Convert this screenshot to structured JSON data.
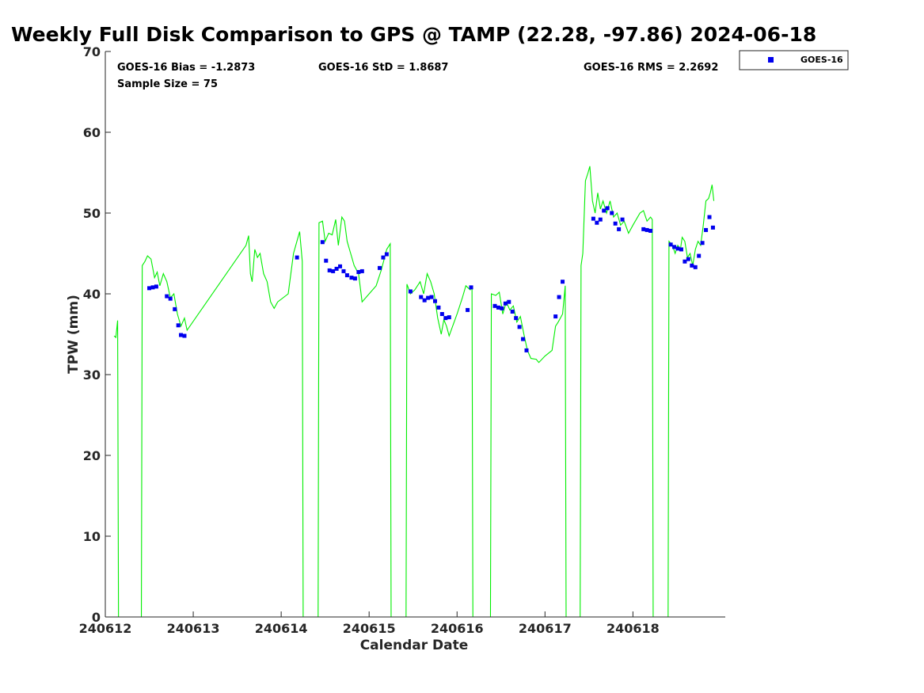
{
  "chart_data": {
    "type": "scatter",
    "title": "Weekly Full Disk Comparison to GPS @ TAMP (22.28, -97.86) 2024-06-18",
    "xlabel": "Calendar Date",
    "ylabel": "TPW (mm)",
    "xlim": [
      240612,
      240619.05
    ],
    "ylim": [
      0,
      70
    ],
    "x_tick_labels": [
      "240612",
      "240613",
      "240614",
      "240615",
      "240616",
      "240617",
      "240618"
    ],
    "y_tick_labels": [
      "0",
      "10",
      "20",
      "30",
      "40",
      "50",
      "60",
      "70"
    ],
    "stats": {
      "bias": "GOES-16 Bias = -1.2873",
      "std": "GOES-16 StD = 1.8687",
      "rms": "GOES-16 RMS = 2.2692",
      "sample": "Sample Size = 75"
    },
    "legend": {
      "position": "top-right",
      "entries": [
        "GOES-16"
      ]
    },
    "colors": {
      "gps_line": "#00ee00",
      "goes_points": "#0000ee"
    },
    "series": [
      {
        "name": "",
        "kind": "line",
        "points": [
          [
            240612.1,
            34.8
          ],
          [
            240612.12,
            34.6
          ],
          [
            240612.14,
            36.7
          ],
          [
            240612.15,
            0
          ],
          [
            240612.41,
            0
          ],
          [
            240612.42,
            43.5
          ],
          [
            240612.45,
            44.0
          ],
          [
            240612.48,
            44.7
          ],
          [
            240612.52,
            44.3
          ],
          [
            240612.56,
            42.0
          ],
          [
            240612.59,
            42.7
          ],
          [
            240612.62,
            41.0
          ],
          [
            240612.66,
            42.5
          ],
          [
            240612.7,
            41.5
          ],
          [
            240612.74,
            39.5
          ],
          [
            240612.78,
            40.0
          ],
          [
            240612.82,
            37.5
          ],
          [
            240612.86,
            36.0
          ],
          [
            240612.9,
            37.0
          ],
          [
            240612.93,
            35.5
          ],
          [
            240613.6,
            46.0
          ],
          [
            240613.63,
            47.2
          ],
          [
            240613.65,
            42.5
          ],
          [
            240613.67,
            41.5
          ],
          [
            240613.7,
            45.5
          ],
          [
            240613.73,
            44.5
          ],
          [
            240613.76,
            45.0
          ],
          [
            240613.8,
            42.5
          ],
          [
            240613.84,
            41.5
          ],
          [
            240613.88,
            39.0
          ],
          [
            240613.92,
            38.2
          ],
          [
            240613.96,
            39.0
          ],
          [
            240614.08,
            40.0
          ],
          [
            240614.14,
            45.0
          ],
          [
            240614.21,
            47.7
          ],
          [
            240614.24,
            44.0
          ],
          [
            240614.25,
            0
          ],
          [
            240614.42,
            0
          ],
          [
            240614.43,
            48.8
          ],
          [
            240614.47,
            49.0
          ],
          [
            240614.5,
            46.5
          ],
          [
            240614.54,
            47.5
          ],
          [
            240614.58,
            47.3
          ],
          [
            240614.62,
            49.2
          ],
          [
            240614.65,
            46.0
          ],
          [
            240614.69,
            49.5
          ],
          [
            240614.72,
            49.0
          ],
          [
            240614.75,
            46.5
          ],
          [
            240614.79,
            45.0
          ],
          [
            240614.83,
            43.5
          ],
          [
            240614.88,
            42.5
          ],
          [
            240614.92,
            39.0
          ],
          [
            240615.0,
            40.0
          ],
          [
            240615.08,
            41.0
          ],
          [
            240615.14,
            43.0
          ],
          [
            240615.2,
            45.5
          ],
          [
            240615.24,
            46.2
          ],
          [
            240615.25,
            0
          ],
          [
            240615.42,
            0
          ],
          [
            240615.43,
            41.2
          ],
          [
            240615.47,
            40.0
          ],
          [
            240615.52,
            40.5
          ],
          [
            240615.58,
            41.5
          ],
          [
            240615.62,
            40.0
          ],
          [
            240615.66,
            42.5
          ],
          [
            240615.7,
            41.5
          ],
          [
            240615.74,
            40.0
          ],
          [
            240615.78,
            37.0
          ],
          [
            240615.82,
            35.0
          ],
          [
            240615.85,
            36.8
          ],
          [
            240615.88,
            36.0
          ],
          [
            240615.91,
            34.8
          ],
          [
            240616.0,
            37.5
          ],
          [
            240616.06,
            39.5
          ],
          [
            240616.1,
            41.0
          ],
          [
            240616.15,
            40.5
          ],
          [
            240616.17,
            41.0
          ],
          [
            240616.18,
            0
          ],
          [
            240616.38,
            0
          ],
          [
            240616.39,
            40.0
          ],
          [
            240616.44,
            39.8
          ],
          [
            240616.48,
            40.2
          ],
          [
            240616.52,
            37.5
          ],
          [
            240616.56,
            39.0
          ],
          [
            240616.6,
            38.0
          ],
          [
            240616.64,
            38.5
          ],
          [
            240616.68,
            36.5
          ],
          [
            240616.72,
            37.2
          ],
          [
            240616.76,
            35.0
          ],
          [
            240616.8,
            33.0
          ],
          [
            240616.84,
            32.0
          ],
          [
            240616.9,
            31.9
          ],
          [
            240616.93,
            31.5
          ],
          [
            240617.0,
            32.3
          ],
          [
            240617.08,
            33.0
          ],
          [
            240617.12,
            36.0
          ],
          [
            240617.15,
            36.5
          ],
          [
            240617.2,
            37.5
          ],
          [
            240617.23,
            41.0
          ],
          [
            240617.24,
            0
          ],
          [
            240617.4,
            0
          ],
          [
            240617.41,
            43.5
          ],
          [
            240617.43,
            45.0
          ],
          [
            240617.46,
            54.0
          ],
          [
            240617.49,
            55.0
          ],
          [
            240617.51,
            55.8
          ],
          [
            240617.54,
            51.5
          ],
          [
            240617.57,
            50.0
          ],
          [
            240617.6,
            52.5
          ],
          [
            240617.63,
            50.5
          ],
          [
            240617.66,
            51.5
          ],
          [
            240617.7,
            50.0
          ],
          [
            240617.74,
            51.5
          ],
          [
            240617.78,
            49.5
          ],
          [
            240617.82,
            50.0
          ],
          [
            240617.86,
            48.5
          ],
          [
            240617.9,
            49.0
          ],
          [
            240617.95,
            47.5
          ],
          [
            240618.0,
            48.5
          ],
          [
            240618.08,
            50.0
          ],
          [
            240618.12,
            50.3
          ],
          [
            240618.16,
            49.0
          ],
          [
            240618.2,
            49.5
          ],
          [
            240618.22,
            49.2
          ],
          [
            240618.23,
            0
          ],
          [
            240618.4,
            0
          ],
          [
            240618.41,
            46.5
          ],
          [
            240618.45,
            46.0
          ],
          [
            240618.48,
            45.0
          ],
          [
            240618.51,
            46.0
          ],
          [
            240618.54,
            45.5
          ],
          [
            240618.56,
            47.0
          ],
          [
            240618.59,
            46.5
          ],
          [
            240618.62,
            44.5
          ],
          [
            240618.65,
            45.0
          ],
          [
            240618.68,
            43.5
          ],
          [
            240618.71,
            45.5
          ],
          [
            240618.74,
            46.5
          ],
          [
            240618.77,
            46.0
          ],
          [
            240618.8,
            48.5
          ],
          [
            240618.83,
            51.5
          ],
          [
            240618.86,
            51.8
          ],
          [
            240618.88,
            52.5
          ],
          [
            240618.9,
            53.5
          ],
          [
            240618.92,
            51.5
          ]
        ]
      },
      {
        "name": "GOES-16",
        "kind": "scatter",
        "points": [
          [
            240612.5,
            40.7
          ],
          [
            240612.54,
            40.8
          ],
          [
            240612.58,
            40.9
          ],
          [
            240612.7,
            39.7
          ],
          [
            240612.74,
            39.4
          ],
          [
            240612.79,
            38.1
          ],
          [
            240612.83,
            36.1
          ],
          [
            240612.86,
            34.9
          ],
          [
            240612.9,
            34.8
          ],
          [
            240614.18,
            44.5
          ],
          [
            240614.47,
            46.4
          ],
          [
            240614.51,
            44.1
          ],
          [
            240614.55,
            42.9
          ],
          [
            240614.59,
            42.8
          ],
          [
            240614.63,
            43.1
          ],
          [
            240614.67,
            43.4
          ],
          [
            240614.71,
            42.8
          ],
          [
            240614.75,
            42.3
          ],
          [
            240614.8,
            42.0
          ],
          [
            240614.84,
            41.9
          ],
          [
            240614.88,
            42.7
          ],
          [
            240614.92,
            42.8
          ],
          [
            240615.12,
            43.2
          ],
          [
            240615.16,
            44.5
          ],
          [
            240615.2,
            44.9
          ],
          [
            240615.47,
            40.3
          ],
          [
            240615.59,
            39.6
          ],
          [
            240615.63,
            39.2
          ],
          [
            240615.67,
            39.5
          ],
          [
            240615.71,
            39.6
          ],
          [
            240615.75,
            39.1
          ],
          [
            240615.79,
            38.3
          ],
          [
            240615.83,
            37.5
          ],
          [
            240615.87,
            37.0
          ],
          [
            240615.91,
            37.1
          ],
          [
            240616.12,
            38.0
          ],
          [
            240616.16,
            40.8
          ],
          [
            240616.43,
            38.5
          ],
          [
            240616.47,
            38.3
          ],
          [
            240616.51,
            38.2
          ],
          [
            240616.55,
            38.8
          ],
          [
            240616.59,
            39.0
          ],
          [
            240616.63,
            37.8
          ],
          [
            240616.67,
            37.0
          ],
          [
            240616.71,
            35.9
          ],
          [
            240616.75,
            34.4
          ],
          [
            240616.79,
            33.0
          ],
          [
            240617.12,
            37.2
          ],
          [
            240617.16,
            39.6
          ],
          [
            240617.2,
            41.5
          ],
          [
            240617.55,
            49.3
          ],
          [
            240617.59,
            48.8
          ],
          [
            240617.63,
            49.2
          ],
          [
            240617.67,
            50.3
          ],
          [
            240617.71,
            50.6
          ],
          [
            240617.76,
            50.0
          ],
          [
            240617.8,
            48.7
          ],
          [
            240617.84,
            48.0
          ],
          [
            240617.88,
            49.2
          ],
          [
            240618.12,
            48.0
          ],
          [
            240618.16,
            47.9
          ],
          [
            240618.2,
            47.8
          ],
          [
            240618.43,
            46.1
          ],
          [
            240618.47,
            45.8
          ],
          [
            240618.51,
            45.6
          ],
          [
            240618.55,
            45.5
          ],
          [
            240618.59,
            44.0
          ],
          [
            240618.63,
            44.3
          ],
          [
            240618.67,
            43.5
          ],
          [
            240618.71,
            43.3
          ],
          [
            240618.75,
            44.7
          ],
          [
            240618.79,
            46.3
          ],
          [
            240618.83,
            47.9
          ],
          [
            240618.87,
            49.5
          ],
          [
            240618.91,
            48.2
          ]
        ]
      }
    ]
  }
}
